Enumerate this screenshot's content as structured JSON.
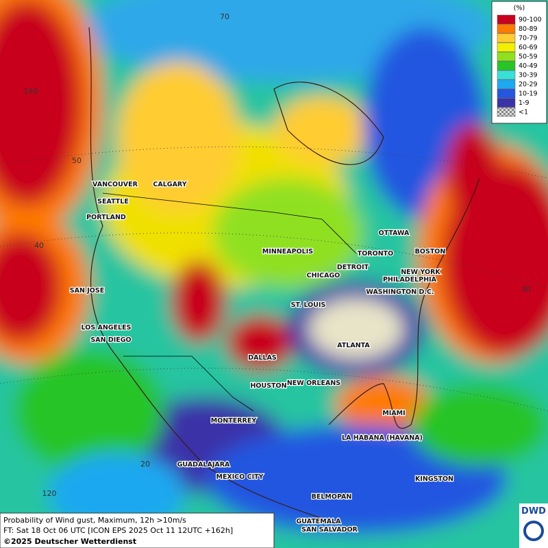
{
  "map": {
    "cities": [
      "VANCOUVER",
      "CALGARY",
      "SEATTLE",
      "PORTLAND",
      "SAN JOSE",
      "LOS ANGELES",
      "SAN DIEGO",
      "MINNEAPOLIS",
      "CHICAGO",
      "DETROIT",
      "TORONTO",
      "OTTAWA",
      "BOSTON",
      "NEW YORK",
      "PHILADELPHIA",
      "WASHINGTON D.C.",
      "ST. LOUIS",
      "ATLANTA",
      "DALLAS",
      "HOUSTON",
      "NEW ORLEANS",
      "MIAMI",
      "MONTERREY",
      "LA HABANA (HAVANA)",
      "GUADALAJARA",
      "MEXICO CITY",
      "KINGSTON",
      "BELMOPAN",
      "GUATEMALA",
      "SAN SALVADOR"
    ],
    "grid_labels": [
      "70",
      "140",
      "50",
      "40",
      "30",
      "20",
      "120"
    ]
  },
  "legend": {
    "title": "(%)",
    "entries": [
      {
        "label": "90-100",
        "color": "#c8001e"
      },
      {
        "label": "80-89",
        "color": "#ff7a00"
      },
      {
        "label": "70-79",
        "color": "#ffcc33"
      },
      {
        "label": "60-69",
        "color": "#f0f000"
      },
      {
        "label": "50-59",
        "color": "#90e020"
      },
      {
        "label": "40-49",
        "color": "#28c428"
      },
      {
        "label": "30-39",
        "color": "#38e0d8"
      },
      {
        "label": "20-29",
        "color": "#1ea8f0"
      },
      {
        "label": "10-19",
        "color": "#2456e0"
      },
      {
        "label": "1-9",
        "color": "#3a32a8"
      },
      {
        "label": "<1",
        "color": "#b0b0b0"
      }
    ]
  },
  "footer": {
    "line1": "Probability of Wind gust, Maximum, 12h >10m/s",
    "line2": "FT: Sat 18 Oct 06 UTC [ICON EPS 2025 Oct 11 12UTC +162h]",
    "line3": "©2025 Deutscher Wetterdienst"
  },
  "logo": "DWD"
}
